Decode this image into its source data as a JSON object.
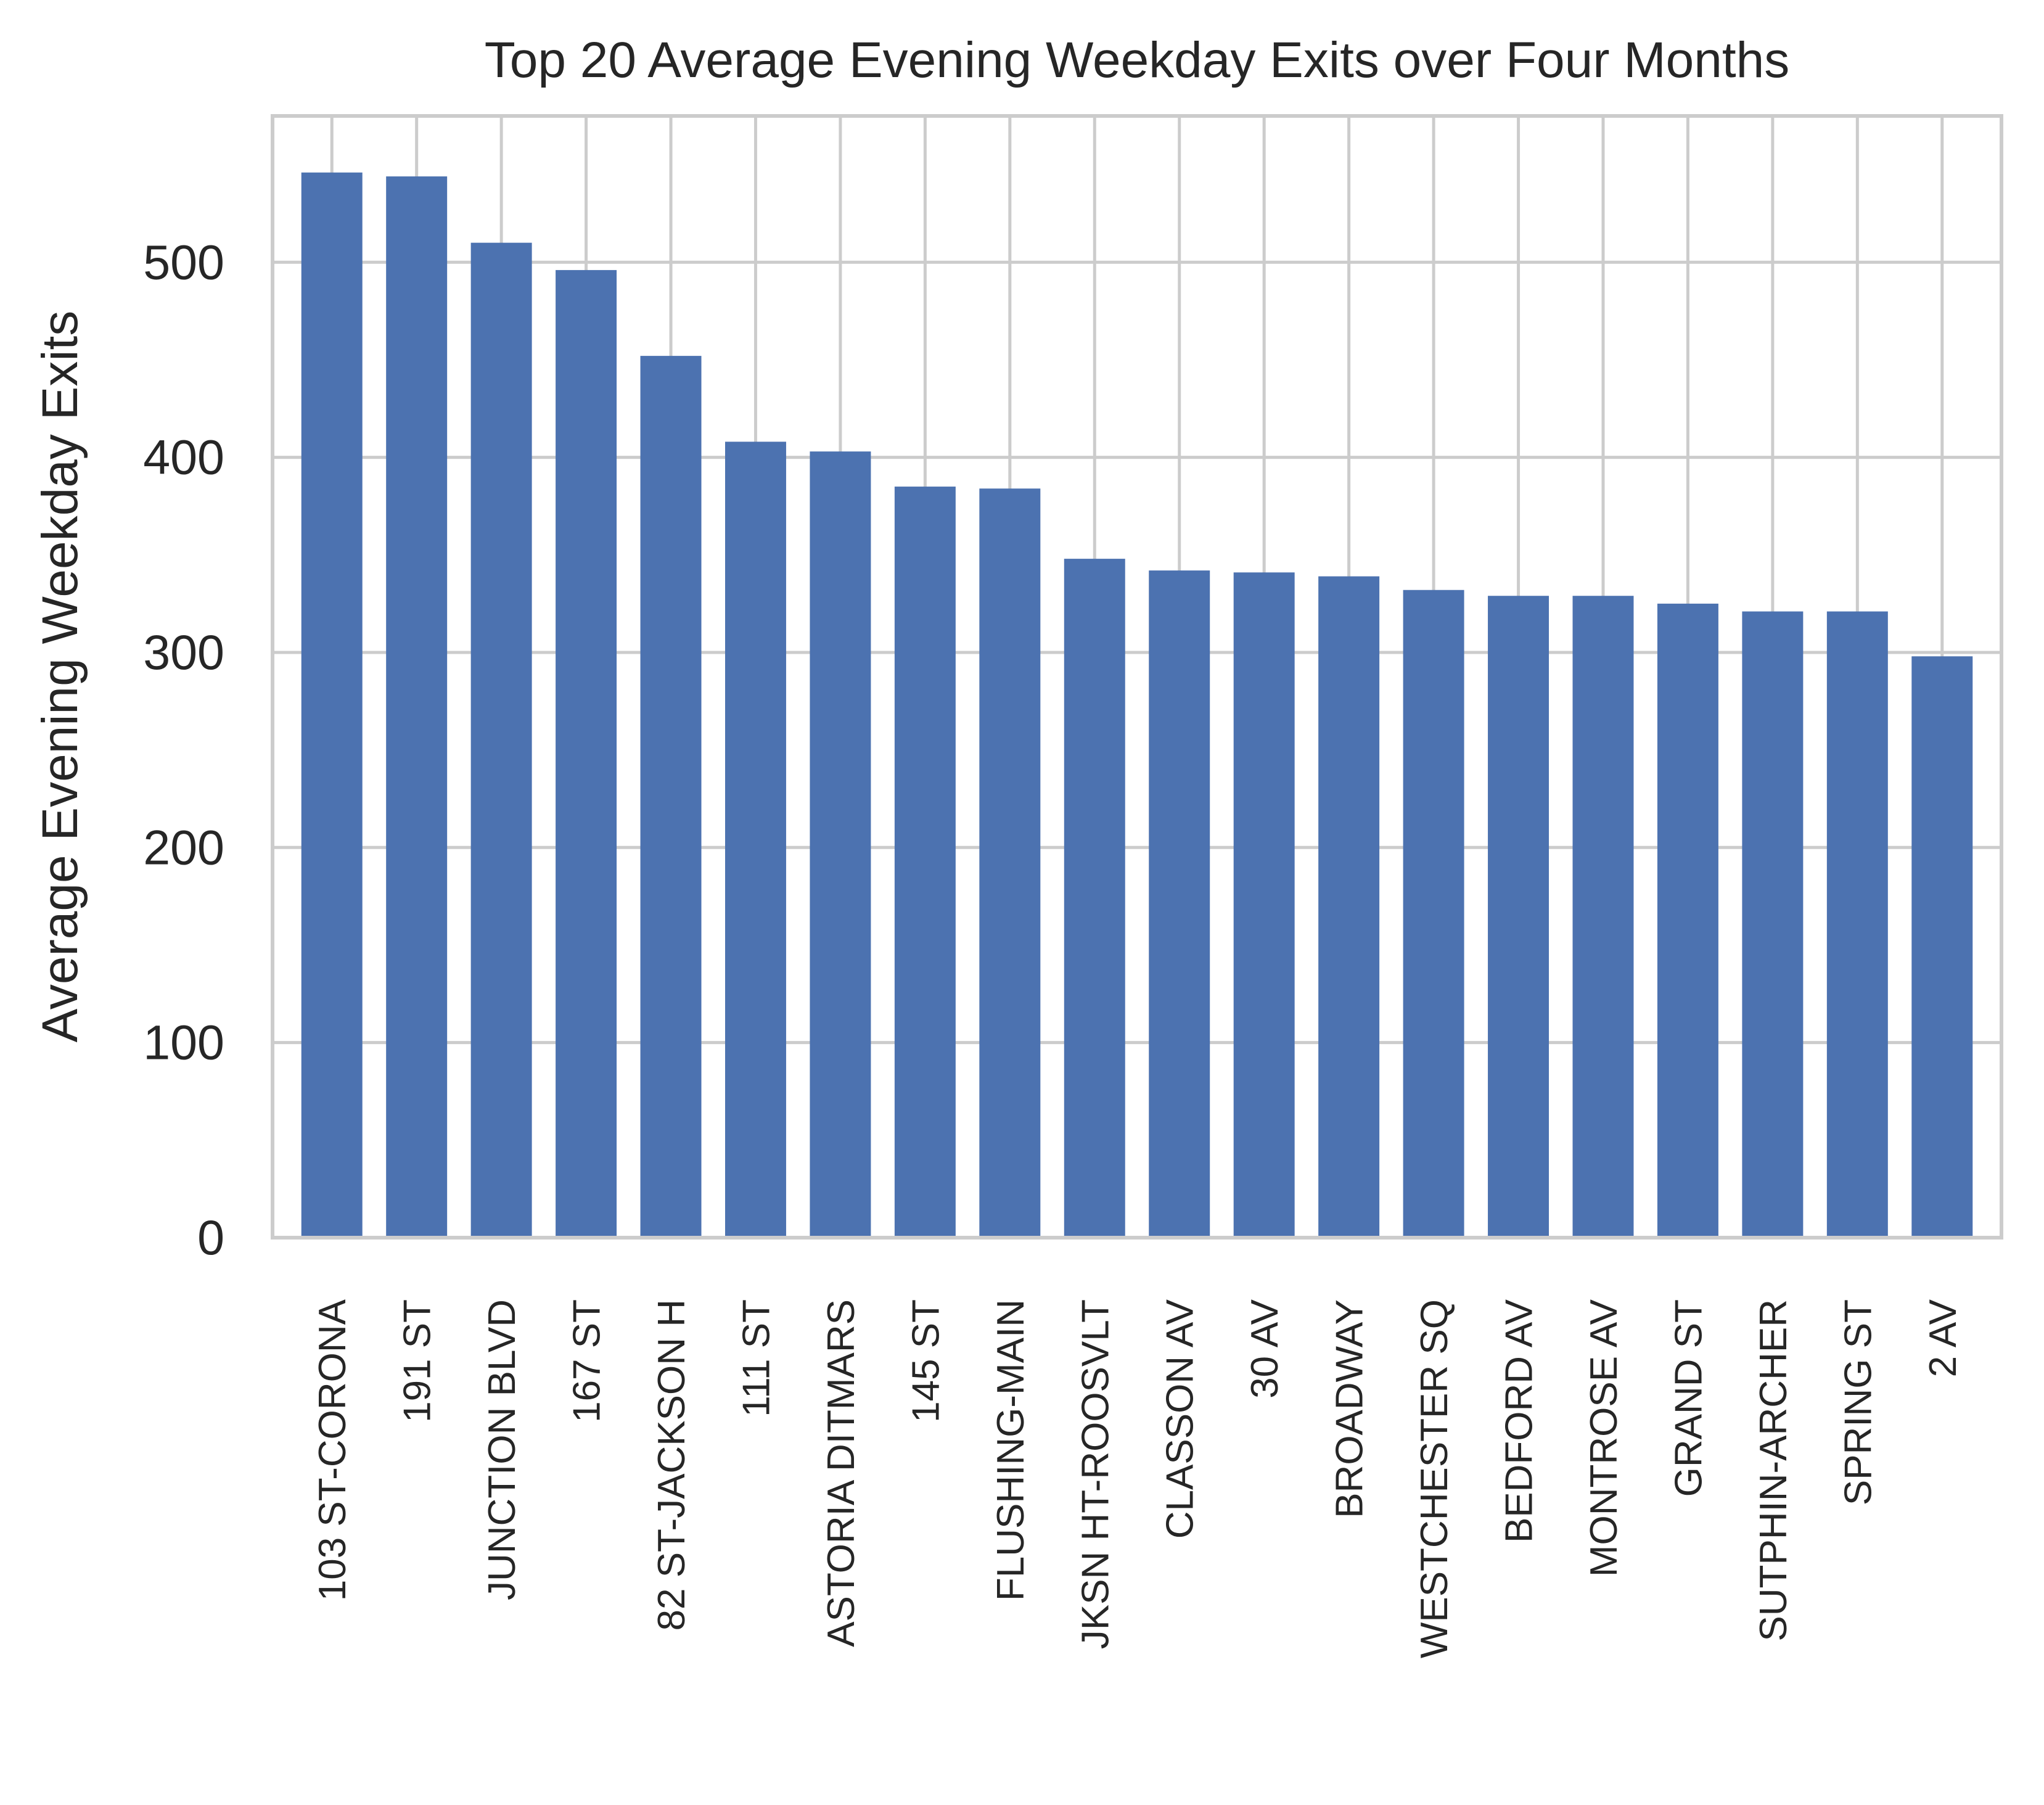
{
  "chart_data": {
    "type": "bar",
    "title": "Top 20 Average Evening Weekday Exits over Four Months",
    "xlabel": "",
    "ylabel": "Average Evening Weekday Exits",
    "categories": [
      "103 ST-CORONA",
      "191 ST",
      "JUNCTION BLVD",
      "167 ST",
      "82 ST-JACKSON H",
      "111 ST",
      "ASTORIA DITMARS",
      "145 ST",
      "FLUSHING-MAIN",
      "JKSN HT-ROOSVLT",
      "CLASSON AV",
      "30 AV",
      "BROADWAY",
      "WESTCHESTER SQ",
      "BEDFORD AV",
      "MONTROSE AV",
      "GRAND ST",
      "SUTPHIN-ARCHER",
      "SPRING ST",
      "2 AV"
    ],
    "values": [
      546,
      544,
      510,
      496,
      452,
      408,
      403,
      385,
      384,
      348,
      342,
      341,
      339,
      332,
      329,
      329,
      325,
      321,
      321,
      298
    ],
    "ylim": [
      0,
      575
    ],
    "yticks": [
      0,
      100,
      200,
      300,
      400,
      500
    ],
    "grid": true,
    "legend": "none",
    "colors": {
      "bar": "#4c72b0",
      "grid": "#cccccc",
      "spine": "#cccccc",
      "text": "#262626",
      "background": "#ffffff"
    }
  }
}
